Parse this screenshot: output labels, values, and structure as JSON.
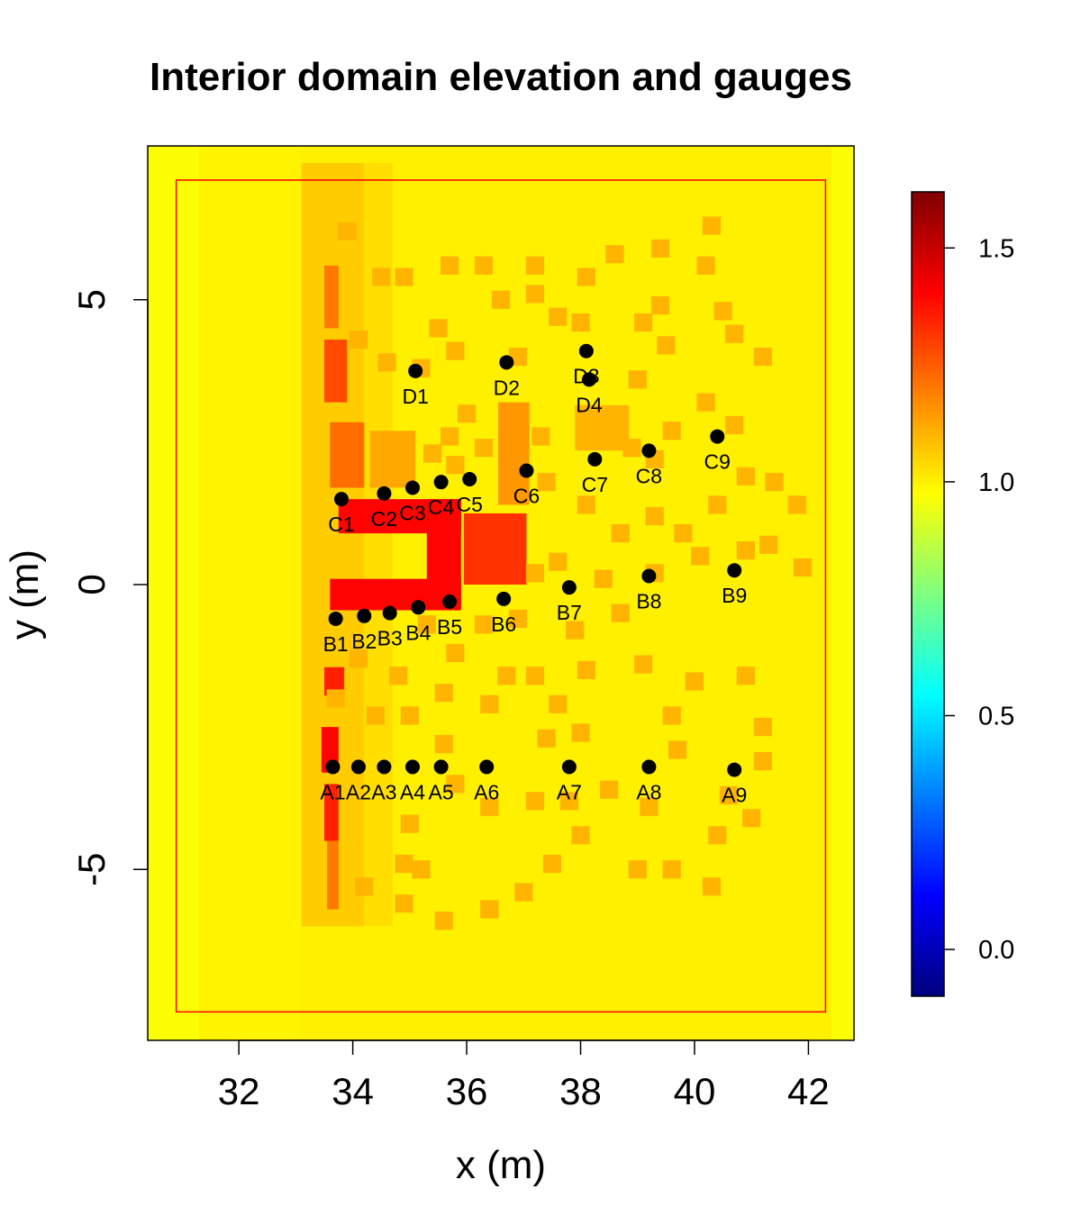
{
  "chart_data": {
    "type": "heatmap",
    "title": "Interior domain elevation and gauges",
    "xlabel": "x (m)",
    "ylabel": "y (m)",
    "xlim": [
      30.4,
      42.8
    ],
    "ylim": [
      -8.0,
      7.7
    ],
    "x_ticks": [
      {
        "value": 32,
        "label": "32"
      },
      {
        "value": 34,
        "label": "34"
      },
      {
        "value": 36,
        "label": "36"
      },
      {
        "value": 38,
        "label": "38"
      },
      {
        "value": 40,
        "label": "40"
      },
      {
        "value": 42,
        "label": "42"
      }
    ],
    "y_ticks": [
      {
        "value": -5,
        "label": "-5"
      },
      {
        "value": 0,
        "label": "0"
      },
      {
        "value": 5,
        "label": "5"
      }
    ],
    "colorbar": {
      "range": [
        -0.1,
        1.62
      ],
      "ticks": [
        {
          "value": 0.0,
          "label": "0.0"
        },
        {
          "value": 0.5,
          "label": "0.5"
        },
        {
          "value": 1.0,
          "label": "1.0"
        },
        {
          "value": 1.5,
          "label": "1.5"
        }
      ],
      "palette": [
        "#00007f",
        "#0000ff",
        "#007fff",
        "#00ffff",
        "#7fff7f",
        "#ffff00",
        "#ff7f00",
        "#ff0000",
        "#7f0000"
      ]
    },
    "interior_boundary": {
      "x0": 30.9,
      "x1": 42.3,
      "y0": -7.5,
      "y1": 7.1,
      "color": "#ff0000"
    },
    "background_value": 1.0,
    "elevation_regions": [
      {
        "name": "left fringe",
        "x0": 30.4,
        "x1": 31.3,
        "y0": -8.0,
        "y1": 7.7,
        "value": 0.97
      },
      {
        "name": "band left",
        "x0": 31.3,
        "x1": 33.1,
        "y0": -8.0,
        "y1": 7.7,
        "value": 0.995
      },
      {
        "name": "road strip",
        "x0": 33.1,
        "x1": 34.2,
        "y0": -6.0,
        "y1": 7.4,
        "value": 1.06
      },
      {
        "name": "road strip edge",
        "x0": 34.2,
        "x1": 34.7,
        "y0": -6.0,
        "y1": 7.4,
        "value": 1.03
      },
      {
        "name": "right fringe",
        "x0": 42.4,
        "x1": 42.8,
        "y0": -8.0,
        "y1": 7.7,
        "value": 0.97
      },
      {
        "name": "L block top",
        "x0": 33.75,
        "x1": 35.9,
        "y0": 0.9,
        "y1": 1.5,
        "value": 1.4
      },
      {
        "name": "L block bottom",
        "x0": 33.6,
        "x1": 35.9,
        "y0": -0.45,
        "y1": 0.1,
        "value": 1.4
      },
      {
        "name": "L block spine",
        "x0": 35.3,
        "x1": 35.9,
        "y0": -0.45,
        "y1": 1.5,
        "value": 1.4
      },
      {
        "name": "big square",
        "x0": 35.95,
        "x1": 37.05,
        "y0": 0.0,
        "y1": 1.25,
        "value": 1.32
      },
      {
        "name": "tall block 1",
        "x0": 33.6,
        "x1": 34.2,
        "y0": 1.7,
        "y1": 2.85,
        "value": 1.22
      },
      {
        "name": "square 2",
        "x0": 34.3,
        "x1": 35.1,
        "y0": 1.7,
        "y1": 2.7,
        "value": 1.12
      },
      {
        "name": "tall block D",
        "x0": 36.55,
        "x1": 37.1,
        "y0": 1.4,
        "y1": 3.2,
        "value": 1.15
      },
      {
        "name": "square right",
        "x0": 37.9,
        "x1": 38.85,
        "y0": 2.35,
        "y1": 3.15,
        "value": 1.1
      },
      {
        "name": "upper strip 1",
        "x0": 33.5,
        "x1": 33.9,
        "y0": 3.2,
        "y1": 4.3,
        "value": 1.28
      },
      {
        "name": "upper strip 2",
        "x0": 33.5,
        "x1": 33.75,
        "y0": 4.5,
        "y1": 5.6,
        "value": 1.2
      },
      {
        "name": "lower strip 1",
        "x0": 33.5,
        "x1": 33.85,
        "y0": -1.95,
        "y1": -1.45,
        "value": 1.35
      },
      {
        "name": "lower strip 2",
        "x0": 33.45,
        "x1": 33.75,
        "y0": -3.3,
        "y1": -2.5,
        "value": 1.4
      },
      {
        "name": "lower strip 3",
        "x0": 33.5,
        "x1": 33.75,
        "y0": -4.5,
        "y1": -3.5,
        "value": 1.35
      },
      {
        "name": "lower strip 4",
        "x0": 33.55,
        "x1": 33.75,
        "y0": -5.7,
        "y1": -4.5,
        "value": 1.2
      }
    ],
    "building_tiles": [
      [
        33.9,
        6.2
      ],
      [
        34.5,
        5.4
      ],
      [
        34.9,
        5.4
      ],
      [
        34.1,
        4.3
      ],
      [
        34.6,
        3.9
      ],
      [
        35.2,
        3.8
      ],
      [
        35.5,
        4.5
      ],
      [
        35.7,
        5.6
      ],
      [
        35.8,
        4.1
      ],
      [
        36.3,
        5.6
      ],
      [
        36.6,
        5.0
      ],
      [
        36.9,
        4.0
      ],
      [
        37.2,
        5.6
      ],
      [
        37.2,
        5.1
      ],
      [
        38.1,
        5.4
      ],
      [
        38.0,
        4.6
      ],
      [
        37.6,
        4.7
      ],
      [
        38.6,
        5.8
      ],
      [
        39.4,
        5.9
      ],
      [
        40.3,
        6.3
      ],
      [
        39.4,
        4.9
      ],
      [
        39.5,
        4.2
      ],
      [
        39.1,
        4.6
      ],
      [
        40.2,
        5.6
      ],
      [
        40.5,
        4.8
      ],
      [
        40.7,
        4.4
      ],
      [
        41.2,
        4.0
      ],
      [
        40.2,
        3.2
      ],
      [
        40.7,
        2.8
      ],
      [
        39.0,
        3.6
      ],
      [
        39.6,
        2.7
      ],
      [
        39.3,
        2.2
      ],
      [
        38.9,
        2.4
      ],
      [
        37.3,
        2.6
      ],
      [
        36.0,
        3.0
      ],
      [
        35.7,
        2.6
      ],
      [
        35.4,
        2.3
      ],
      [
        35.8,
        2.1
      ],
      [
        36.3,
        2.4
      ],
      [
        37.4,
        1.8
      ],
      [
        38.1,
        1.4
      ],
      [
        38.7,
        0.9
      ],
      [
        39.3,
        1.2
      ],
      [
        39.8,
        0.9
      ],
      [
        40.4,
        1.4
      ],
      [
        40.9,
        1.9
      ],
      [
        41.4,
        1.8
      ],
      [
        41.8,
        1.4
      ],
      [
        41.3,
        0.7
      ],
      [
        41.9,
        0.3
      ],
      [
        40.9,
        0.6
      ],
      [
        40.1,
        0.5
      ],
      [
        39.3,
        0.2
      ],
      [
        38.4,
        0.1
      ],
      [
        37.6,
        0.4
      ],
      [
        37.2,
        0.2
      ],
      [
        36.9,
        -0.6
      ],
      [
        36.3,
        -0.7
      ],
      [
        35.3,
        -0.7
      ],
      [
        35.8,
        -1.2
      ],
      [
        34.1,
        -1.3
      ],
      [
        33.7,
        -2.0
      ],
      [
        34.8,
        -1.6
      ],
      [
        35.6,
        -1.9
      ],
      [
        36.7,
        -1.6
      ],
      [
        37.2,
        -1.6
      ],
      [
        38.1,
        -1.5
      ],
      [
        37.9,
        -0.8
      ],
      [
        38.7,
        -0.5
      ],
      [
        39.1,
        -1.4
      ],
      [
        40.0,
        -1.7
      ],
      [
        40.9,
        -1.6
      ],
      [
        41.2,
        -2.5
      ],
      [
        40.6,
        -3.7
      ],
      [
        40.4,
        -4.4
      ],
      [
        40.3,
        -5.3
      ],
      [
        39.6,
        -5.0
      ],
      [
        39.0,
        -5.0
      ],
      [
        39.2,
        -3.9
      ],
      [
        38.5,
        -3.6
      ],
      [
        38.0,
        -4.4
      ],
      [
        37.5,
        -4.9
      ],
      [
        37.0,
        -5.4
      ],
      [
        36.4,
        -5.7
      ],
      [
        35.6,
        -5.9
      ],
      [
        34.9,
        -5.6
      ],
      [
        34.2,
        -5.3
      ],
      [
        35.0,
        -4.2
      ],
      [
        35.8,
        -3.5
      ],
      [
        36.4,
        -3.9
      ],
      [
        37.2,
        -3.8
      ],
      [
        37.8,
        -3.8
      ],
      [
        37.4,
        -2.7
      ],
      [
        36.4,
        -2.1
      ],
      [
        35.6,
        -2.8
      ],
      [
        35.0,
        -2.3
      ],
      [
        34.4,
        -2.3
      ],
      [
        34.9,
        -4.9
      ],
      [
        35.2,
        -5.0
      ],
      [
        37.6,
        -2.1
      ],
      [
        38.0,
        -2.6
      ],
      [
        39.7,
        -2.9
      ],
      [
        39.6,
        -2.3
      ],
      [
        41.2,
        -3.1
      ],
      [
        41.0,
        -4.1
      ]
    ],
    "building_tile_value": 1.1,
    "building_tile_size": 0.32,
    "gauges": [
      {
        "label": "A1",
        "x": 33.65,
        "y": -3.2,
        "dx": 0,
        "dy": 1
      },
      {
        "label": "A2",
        "x": 34.1,
        "y": -3.2,
        "dx": 0,
        "dy": 1
      },
      {
        "label": "A3",
        "x": 34.55,
        "y": -3.2,
        "dx": 0,
        "dy": 1
      },
      {
        "label": "A4",
        "x": 35.05,
        "y": -3.2,
        "dx": 0,
        "dy": 1
      },
      {
        "label": "A5",
        "x": 35.55,
        "y": -3.2,
        "dx": 0,
        "dy": 1
      },
      {
        "label": "A6",
        "x": 36.35,
        "y": -3.2,
        "dx": 0,
        "dy": 1
      },
      {
        "label": "A7",
        "x": 37.8,
        "y": -3.2,
        "dx": 0,
        "dy": 1
      },
      {
        "label": "A8",
        "x": 39.2,
        "y": -3.2,
        "dx": 0,
        "dy": 1
      },
      {
        "label": "A9",
        "x": 40.7,
        "y": -3.25,
        "dx": 0,
        "dy": 1
      },
      {
        "label": "B1",
        "x": 33.7,
        "y": -0.6,
        "dx": 0,
        "dy": 1
      },
      {
        "label": "B2",
        "x": 34.2,
        "y": -0.55,
        "dx": 0,
        "dy": 1
      },
      {
        "label": "B3",
        "x": 34.65,
        "y": -0.5,
        "dx": 0,
        "dy": 1
      },
      {
        "label": "B4",
        "x": 35.15,
        "y": -0.4,
        "dx": 0,
        "dy": 1
      },
      {
        "label": "B5",
        "x": 35.7,
        "y": -0.3,
        "dx": 0,
        "dy": 1
      },
      {
        "label": "B6",
        "x": 36.65,
        "y": -0.25,
        "dx": 0,
        "dy": 1
      },
      {
        "label": "B7",
        "x": 37.8,
        "y": -0.05,
        "dx": 0,
        "dy": 1
      },
      {
        "label": "B8",
        "x": 39.2,
        "y": 0.15,
        "dx": 0,
        "dy": 1
      },
      {
        "label": "B9",
        "x": 40.7,
        "y": 0.25,
        "dx": 0,
        "dy": 1
      },
      {
        "label": "C1",
        "x": 33.8,
        "y": 1.5,
        "dx": 0,
        "dy": 1
      },
      {
        "label": "C2",
        "x": 34.55,
        "y": 1.6,
        "dx": 0,
        "dy": 1
      },
      {
        "label": "C3",
        "x": 35.05,
        "y": 1.7,
        "dx": 0,
        "dy": 1
      },
      {
        "label": "C4",
        "x": 35.55,
        "y": 1.8,
        "dx": 0,
        "dy": 1
      },
      {
        "label": "C5",
        "x": 36.05,
        "y": 1.85,
        "dx": 0,
        "dy": 1
      },
      {
        "label": "C6",
        "x": 37.05,
        "y": 2.0,
        "dx": 0,
        "dy": 1
      },
      {
        "label": "C7",
        "x": 38.25,
        "y": 2.2,
        "dx": 0,
        "dy": 1
      },
      {
        "label": "C8",
        "x": 39.2,
        "y": 2.35,
        "dx": 0,
        "dy": 1
      },
      {
        "label": "C9",
        "x": 40.4,
        "y": 2.6,
        "dx": 0,
        "dy": 1
      },
      {
        "label": "D1",
        "x": 35.1,
        "y": 3.75,
        "dx": 0,
        "dy": 1
      },
      {
        "label": "D2",
        "x": 36.7,
        "y": 3.9,
        "dx": 0,
        "dy": 1
      },
      {
        "label": "D3",
        "x": 38.1,
        "y": 4.1,
        "dx": 0,
        "dy": 1
      },
      {
        "label": "D4",
        "x": 38.15,
        "y": 3.6,
        "dx": 0,
        "dy": 1
      }
    ]
  }
}
